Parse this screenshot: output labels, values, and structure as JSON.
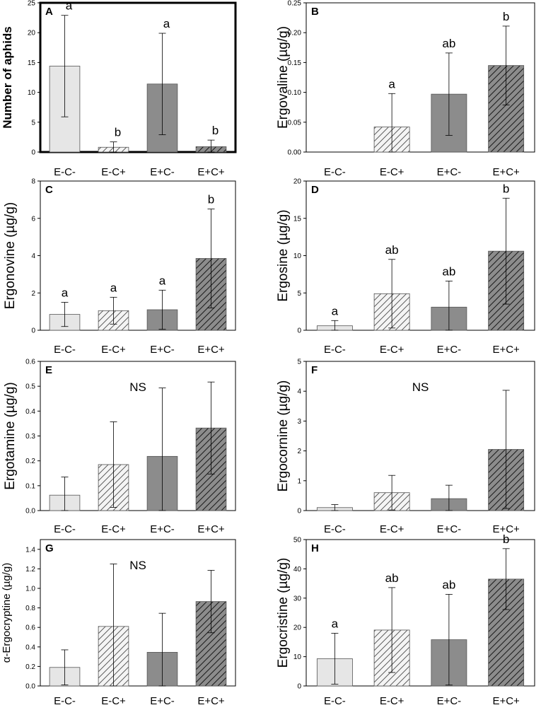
{
  "figure": {
    "categories": [
      "E-C-",
      "E-C+",
      "E+C-",
      "E+C+"
    ],
    "colors": {
      "light": "#e6e6e6",
      "dark": "#8c8c8c",
      "hatch_light": "#4d4d4d",
      "hatch_dark": "#1a1a1a",
      "axis": "#000000",
      "error": "#000000"
    }
  },
  "chart_data": [
    {
      "type": "bar",
      "panel": "A",
      "ylabel": "Number of aphids",
      "categories": [
        "E-C-",
        "E-C+",
        "E+C-",
        "E+C+"
      ],
      "values": [
        14.4,
        0.8,
        11.4,
        0.9
      ],
      "errors": [
        8.5,
        0.9,
        8.5,
        1.1
      ],
      "ylim": [
        0,
        25
      ],
      "yticks": [
        0,
        5,
        10,
        15,
        20,
        25
      ],
      "ytick_labels": [
        "0",
        "5",
        "10",
        "15",
        "20",
        "25"
      ],
      "significance": [
        "a",
        "b",
        "a",
        "b"
      ],
      "styles": [
        "light",
        "light-hatch",
        "dark",
        "dark-hatch"
      ]
    },
    {
      "type": "bar",
      "panel": "B",
      "ylabel": "Ergovaline (µg/g)",
      "categories": [
        "E-C-",
        "E-C+",
        "E+C-",
        "E+C+"
      ],
      "values": [
        0,
        0.042,
        0.097,
        0.145
      ],
      "errors": [
        0,
        0.056,
        0.069,
        0.066
      ],
      "ylim": [
        0,
        0.25
      ],
      "yticks": [
        0,
        0.05,
        0.1,
        0.15,
        0.2,
        0.25
      ],
      "ytick_labels": [
        "0.00",
        "0.05",
        "0.10",
        "0.15",
        "0.20",
        "0.25"
      ],
      "significance": [
        "",
        "a",
        "ab",
        "b"
      ],
      "styles": [
        "light",
        "light-hatch",
        "dark",
        "dark-hatch"
      ]
    },
    {
      "type": "bar",
      "panel": "C",
      "ylabel": "Ergonovine (µg/g)",
      "categories": [
        "E-C-",
        "E-C+",
        "E+C-",
        "E+C+"
      ],
      "values": [
        0.85,
        1.05,
        1.1,
        3.85
      ],
      "errors": [
        0.65,
        0.72,
        1.05,
        2.65
      ],
      "ylim": [
        0,
        8
      ],
      "yticks": [
        0,
        2,
        4,
        6,
        8
      ],
      "ytick_labels": [
        "0",
        "2",
        "4",
        "6",
        "8"
      ],
      "significance": [
        "a",
        "a",
        "a",
        "b"
      ],
      "styles": [
        "light",
        "light-hatch",
        "dark",
        "dark-hatch"
      ]
    },
    {
      "type": "bar",
      "panel": "D",
      "ylabel": "Ergosine (µg/g)",
      "categories": [
        "E-C-",
        "E-C+",
        "E+C-",
        "E+C+"
      ],
      "values": [
        0.6,
        4.9,
        3.1,
        10.6
      ],
      "errors": [
        0.7,
        4.6,
        3.5,
        7.1
      ],
      "ylim": [
        0,
        20
      ],
      "yticks": [
        0,
        5,
        10,
        15,
        20
      ],
      "ytick_labels": [
        "0",
        "5",
        "10",
        "15",
        "20"
      ],
      "significance": [
        "a",
        "ab",
        "ab",
        "b"
      ],
      "styles": [
        "light",
        "light-hatch",
        "dark",
        "dark-hatch"
      ]
    },
    {
      "type": "bar",
      "panel": "E",
      "ylabel": "Ergotamine (µg/g)",
      "categories": [
        "E-C-",
        "E-C+",
        "E+C-",
        "E+C+"
      ],
      "values": [
        0.062,
        0.185,
        0.218,
        0.332
      ],
      "errors": [
        0.073,
        0.172,
        0.275,
        0.185
      ],
      "ylim": [
        0,
        0.6
      ],
      "yticks": [
        0,
        0.1,
        0.2,
        0.3,
        0.4,
        0.5,
        0.6
      ],
      "ytick_labels": [
        "0.0",
        "0.1",
        "0.2",
        "0.3",
        "0.4",
        "0.5",
        "0.6"
      ],
      "annotation": "NS",
      "styles": [
        "light",
        "light-hatch",
        "dark",
        "dark-hatch"
      ]
    },
    {
      "type": "bar",
      "panel": "F",
      "ylabel": "Ergocornine (µg/g)",
      "categories": [
        "E-C-",
        "E-C+",
        "E+C-",
        "E+C+"
      ],
      "values": [
        0.1,
        0.6,
        0.4,
        2.05
      ],
      "errors": [
        0.1,
        0.58,
        0.45,
        1.98
      ],
      "ylim": [
        0,
        5
      ],
      "yticks": [
        0,
        1,
        2,
        3,
        4,
        5
      ],
      "ytick_labels": [
        "0",
        "1",
        "2",
        "3",
        "4",
        "5"
      ],
      "annotation": "NS",
      "styles": [
        "light",
        "light-hatch",
        "dark",
        "dark-hatch"
      ]
    },
    {
      "type": "bar",
      "panel": "G",
      "ylabel": "α-Ergocryptine (µg/g)",
      "categories": [
        "E-C-",
        "E-C+",
        "E+C-",
        "E+C+"
      ],
      "values": [
        0.19,
        0.61,
        0.345,
        0.865
      ],
      "errors": [
        0.18,
        0.64,
        0.4,
        0.32
      ],
      "ylim": [
        0,
        1.5
      ],
      "yticks": [
        0,
        0.2,
        0.4,
        0.6,
        0.8,
        1.0,
        1.2,
        1.4
      ],
      "ytick_labels": [
        "0.0",
        "0.2",
        "0.4",
        "0.6",
        "0.8",
        "1.0",
        "1.2",
        "1.4"
      ],
      "annotation": "NS",
      "styles": [
        "light",
        "light-hatch",
        "dark",
        "dark-hatch"
      ]
    },
    {
      "type": "bar",
      "panel": "H",
      "ylabel": "Ergocristine (µg/g)",
      "categories": [
        "E-C-",
        "E-C+",
        "E+C-",
        "E+C+"
      ],
      "values": [
        9.3,
        19.1,
        15.8,
        36.5
      ],
      "errors": [
        8.7,
        14.5,
        15.5,
        10.4
      ],
      "ylim": [
        0,
        50
      ],
      "yticks": [
        0,
        10,
        20,
        30,
        40,
        50
      ],
      "ytick_labels": [
        "0",
        "10",
        "20",
        "30",
        "40",
        "50"
      ],
      "significance": [
        "a",
        "ab",
        "ab",
        "b"
      ],
      "styles": [
        "light",
        "light-hatch",
        "dark",
        "dark-hatch"
      ]
    }
  ]
}
